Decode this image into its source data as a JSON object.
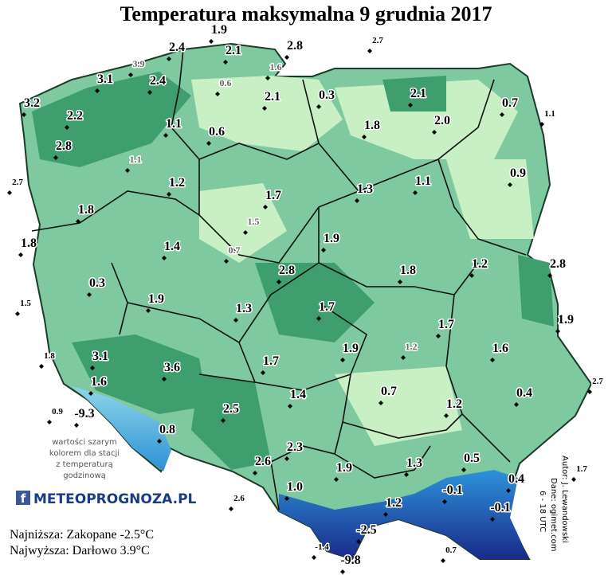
{
  "title": "Temperatura maksymalna 9 grudnia 2017",
  "stations": [
    "1.9",
    "2.4",
    "2.1",
    "2.8",
    "3.1",
    "2.4",
    "0.3",
    "2.1",
    "3.2",
    "2.2",
    "1.1",
    "1.8",
    "2.0",
    "0.7",
    "0.6",
    "2.8",
    "1.2",
    "0.9",
    "1.3",
    "1.1",
    "1.7",
    "1.8",
    "1.9",
    "1.4",
    "2.8",
    "1.8",
    "1.2",
    "2.8",
    "0.3",
    "1.9",
    "1.3",
    "1.7",
    "1.7",
    "1.9",
    "1.9",
    "1.6",
    "1.7",
    "3.1",
    "3.6",
    "1.6",
    "0.7",
    "1.4",
    "0.4",
    "1.2",
    "-9.3",
    "2.5",
    "0.8",
    "2.3",
    "1.9",
    "2.6",
    "1.3",
    "0.5",
    "-0.1",
    "0.4",
    "1.0",
    "1.2",
    "-0.1",
    "-2.5",
    "-9.8",
    "1.8",
    "2.1"
  ],
  "hourly_stations": [
    "3.9",
    "1.6",
    "0.6",
    "1.1",
    "1.5",
    "0.7",
    "1.2"
  ],
  "outside_stations": [
    "2.7",
    "1.1",
    "2.7",
    "1.5",
    "1.8",
    "2.7",
    "0.9",
    "1.7",
    "2.6",
    "-1.4",
    "0.7"
  ],
  "note": [
    "wartości szarym",
    "kolorem dla stacji",
    "z temperaturą",
    "godzinową"
  ],
  "logo": {
    "icon": "f",
    "text": "METEOPROGNOZA.PL"
  },
  "summary": [
    "Najniższa: Zakopane -2.5°C",
    "Najwyższa: Darłowo 3.9°C"
  ],
  "credits": [
    "Autor: J. Lewandowski",
    "Dane: ogimet.com",
    "6 - 18 UTC"
  ]
}
